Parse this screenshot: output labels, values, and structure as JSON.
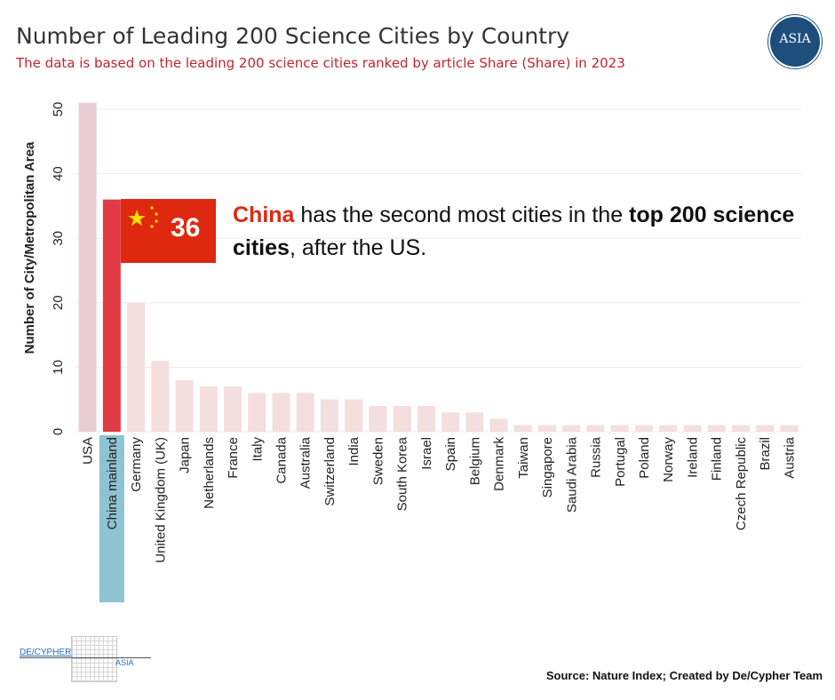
{
  "header": {
    "title": "Number of Leading 200 Science Cities by Country",
    "subtitle": "The data is based on the leading 200 science cities ranked by article Share (Share) in 2023",
    "badge": "ASIA"
  },
  "annotation": {
    "value_label": "36",
    "part1": "China",
    "part2": " has the second most cities in the ",
    "part3": "top 200 science cities",
    "part4": ", after the US."
  },
  "footer": {
    "logo_text": "DE/CYPHER",
    "logo_sub": "ASIA",
    "source": "Source: Nature Index; Created by De/Cypher Team"
  },
  "colors": {
    "usa": "#e7ccd4",
    "china": "#e03a45",
    "others": "#f4dede",
    "highlight": "#8ec3d2",
    "flag": "#de2910",
    "star": "#ffde00",
    "grid": "#ececec"
  },
  "chart_data": {
    "type": "bar",
    "title": "Number of Leading 200 Science Cities by Country",
    "subtitle": "The data is based on the leading 200 science cities ranked by article Share (Share) in 2023",
    "xlabel": "",
    "ylabel": "Number of City/Metropolitan Area",
    "ylim": [
      0,
      50
    ],
    "yticks": [
      0,
      10,
      20,
      30,
      40,
      50
    ],
    "grid": true,
    "categories": [
      "USA",
      "China mainland",
      "Germany",
      "United Kingdom (UK)",
      "Japan",
      "Netherlands",
      "France",
      "Italy",
      "Canada",
      "Australia",
      "Switzerland",
      "India",
      "Sweden",
      "South Korea",
      "Israel",
      "Spain",
      "Belgium",
      "Denmark",
      "Taiwan",
      "Singapore",
      "Saudi Arabia",
      "Russia",
      "Portugal",
      "Poland",
      "Norway",
      "Ireland",
      "Finland",
      "Czech Republic",
      "Brazil",
      "Austria"
    ],
    "values": [
      51,
      36,
      20,
      11,
      8,
      7,
      7,
      6,
      6,
      6,
      5,
      5,
      4,
      4,
      4,
      3,
      3,
      2,
      1,
      1,
      1,
      1,
      1,
      1,
      1,
      1,
      1,
      1,
      1,
      1
    ],
    "highlighted_category": "China mainland"
  }
}
